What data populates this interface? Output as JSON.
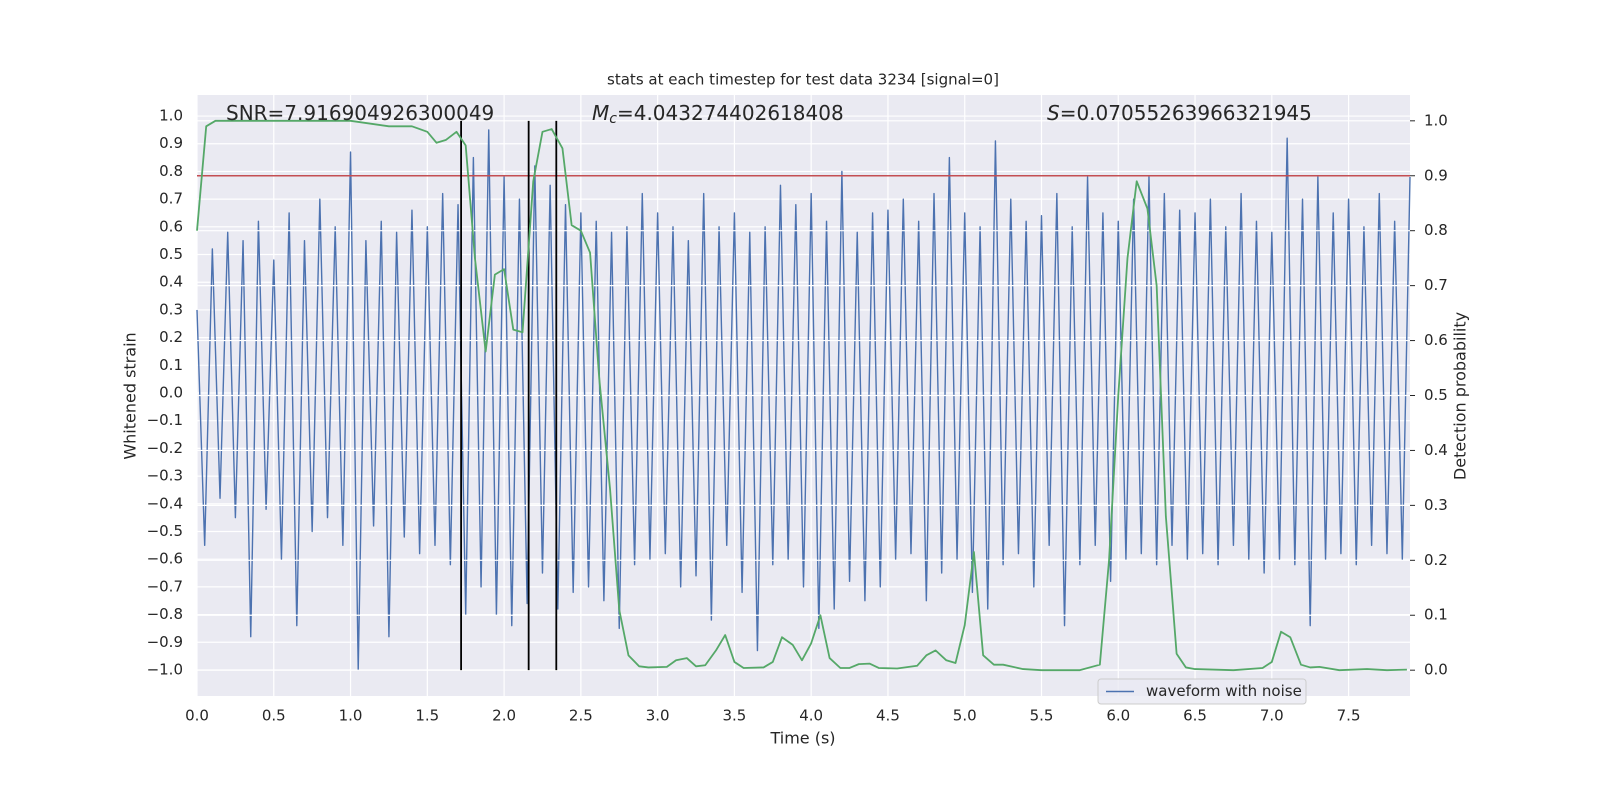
{
  "chart_data": {
    "type": "line",
    "title": "stats at each timestep for test data 3234 [signal=0]",
    "xlabel": "Time (s)",
    "ylabel": "Whitened strain",
    "y2label": "Detection probability",
    "xlim": [
      0,
      7.9
    ],
    "ylim": [
      -1.094,
      1.076
    ],
    "y2lim": [
      -0.047,
      1.047
    ],
    "xticks": [
      {
        "value": 0,
        "label": "0.0"
      },
      0.5,
      {
        "value": 1,
        "label": "1.0"
      },
      1.5,
      {
        "value": 2,
        "label": "2.0"
      },
      2.5,
      {
        "value": 3,
        "label": "3.0"
      },
      3.5,
      {
        "value": 4,
        "label": "4.0"
      },
      4.5,
      {
        "value": 5,
        "label": "5.0"
      },
      5.5,
      {
        "value": 6,
        "label": "6.0"
      },
      6.5,
      {
        "value": 7,
        "label": "7.0"
      },
      7.5
    ],
    "yticks": [
      {
        "value": -1,
        "label": "−1.0"
      },
      {
        "value": -0.9,
        "label": "−0.9"
      },
      {
        "value": -0.8,
        "label": "−0.8"
      },
      {
        "value": -0.7,
        "label": "−0.7"
      },
      {
        "value": -0.6,
        "label": "−0.6"
      },
      {
        "value": -0.5,
        "label": "−0.5"
      },
      {
        "value": -0.4,
        "label": "−0.4"
      },
      {
        "value": -0.3,
        "label": "−0.3"
      },
      {
        "value": -0.2,
        "label": "−0.2"
      },
      {
        "value": -0.1,
        "label": "−0.1"
      },
      {
        "value": 0,
        "label": "0.0"
      },
      0.1,
      0.2,
      0.3,
      0.4,
      0.5,
      0.6,
      0.7,
      0.8,
      0.9,
      {
        "value": 1,
        "label": "1.0"
      }
    ],
    "y2ticks": [
      {
        "value": 0,
        "label": "0.0"
      },
      0.1,
      0.2,
      0.3,
      0.4,
      0.5,
      0.6,
      0.7,
      0.8,
      0.9,
      {
        "value": 1,
        "label": "1.0"
      }
    ],
    "grid": true,
    "legend": "lower right",
    "annotations": [
      {
        "text": "SNR=7.916904926300049"
      },
      {
        "symbol": "M",
        "sub": "c",
        "text": "=4.043274402618408"
      },
      {
        "symbol": "S",
        "text": "=0.07055263966321945"
      }
    ],
    "series": [
      {
        "name": "waveform with noise",
        "color": "#4c72b0",
        "x": [
          0,
          0.05,
          0.1,
          0.15,
          0.2,
          0.25,
          0.3,
          0.35,
          0.4,
          0.45,
          0.5,
          0.55,
          0.6,
          0.65,
          0.7,
          0.75,
          0.8,
          0.85,
          0.9,
          0.95,
          1,
          1.05,
          1.1,
          1.15,
          1.2,
          1.25,
          1.3,
          1.35,
          1.4,
          1.45,
          1.5,
          1.55,
          1.6,
          1.65,
          1.7,
          1.75,
          1.8,
          1.85,
          1.9,
          1.95,
          2,
          2.05,
          2.1,
          2.15,
          2.2,
          2.25,
          2.3,
          2.35,
          2.4,
          2.45,
          2.5,
          2.55,
          2.6,
          2.65,
          2.7,
          2.75,
          2.8,
          2.85,
          2.9,
          2.95,
          3,
          3.05,
          3.1,
          3.15,
          3.2,
          3.25,
          3.3,
          3.35,
          3.4,
          3.45,
          3.5,
          3.55,
          3.6,
          3.65,
          3.7,
          3.75,
          3.8,
          3.85,
          3.9,
          3.95,
          4,
          4.05,
          4.1,
          4.15,
          4.2,
          4.25,
          4.3,
          4.35,
          4.4,
          4.45,
          4.5,
          4.55,
          4.6,
          4.65,
          4.7,
          4.75,
          4.8,
          4.85,
          4.9,
          4.95,
          5,
          5.05,
          5.1,
          5.15,
          5.2,
          5.25,
          5.3,
          5.35,
          5.4,
          5.45,
          5.5,
          5.55,
          5.6,
          5.65,
          5.7,
          5.75,
          5.8,
          5.85,
          5.9,
          5.95,
          6,
          6.05,
          6.1,
          6.15,
          6.2,
          6.25,
          6.3,
          6.35,
          6.4,
          6.45,
          6.5,
          6.55,
          6.6,
          6.65,
          6.7,
          6.75,
          6.8,
          6.85,
          6.9,
          6.95,
          7,
          7.05,
          7.1,
          7.15,
          7.2,
          7.25,
          7.3,
          7.35,
          7.4,
          7.45,
          7.5,
          7.55,
          7.6,
          7.65,
          7.7,
          7.75,
          7.8,
          7.85,
          7.9
        ],
        "values": [
          0.3,
          -0.55,
          0.52,
          -0.38,
          0.58,
          -0.45,
          0.55,
          -0.88,
          0.62,
          -0.42,
          0.48,
          -0.6,
          0.65,
          -0.84,
          0.55,
          -0.5,
          0.7,
          -0.45,
          0.6,
          -0.55,
          0.87,
          -1.0,
          0.55,
          -0.48,
          0.62,
          -0.88,
          0.58,
          -0.52,
          0.66,
          -0.58,
          0.6,
          -0.55,
          0.72,
          -0.62,
          0.68,
          -0.8,
          0.85,
          -0.7,
          0.95,
          -0.8,
          0.78,
          -0.84,
          0.7,
          -0.76,
          0.82,
          -0.65,
          0.75,
          -0.78,
          0.68,
          -0.72,
          0.65,
          -0.7,
          0.62,
          -0.75,
          0.58,
          -0.85,
          0.6,
          -0.62,
          0.72,
          -0.6,
          0.65,
          -0.58,
          0.6,
          -0.7,
          0.55,
          -0.66,
          0.72,
          -0.82,
          0.6,
          -0.55,
          0.65,
          -0.72,
          0.58,
          -0.93,
          0.6,
          -0.62,
          0.75,
          -0.6,
          0.68,
          -0.7,
          0.72,
          -0.85,
          0.62,
          -0.78,
          0.8,
          -0.68,
          0.58,
          -0.75,
          0.65,
          -0.7,
          0.66,
          -0.6,
          0.7,
          -0.58,
          0.62,
          -0.75,
          0.72,
          -0.65,
          0.85,
          -0.6,
          0.65,
          -0.72,
          0.6,
          -0.78,
          0.91,
          -0.62,
          0.7,
          -0.58,
          0.62,
          -0.7,
          0.64,
          -0.55,
          0.72,
          -0.84,
          0.6,
          -0.62,
          0.78,
          -0.55,
          0.65,
          -0.68,
          0.62,
          -0.6,
          0.7,
          -0.58,
          0.78,
          -0.62,
          0.72,
          -0.55,
          0.66,
          -0.6,
          0.65,
          -0.58,
          0.7,
          -0.62,
          0.6,
          -0.55,
          0.72,
          -0.6,
          0.62,
          -0.65,
          0.58,
          -0.6,
          0.92,
          -0.62,
          0.7,
          -0.84,
          0.78,
          -0.6,
          0.65,
          -0.58,
          0.7,
          -0.62,
          0.6,
          -0.55,
          0.72,
          -0.58,
          0.62,
          -0.6,
          0.78
        ]
      },
      {
        "color": "#55a868",
        "axis": "y2",
        "x": [
          0,
          0.06,
          0.12,
          0.5,
          1,
          1.25,
          1.4,
          1.5,
          1.56,
          1.62,
          1.69,
          1.75,
          1.81,
          1.88,
          1.94,
          2,
          2.06,
          2.12,
          2.19,
          2.25,
          2.31,
          2.38,
          2.44,
          2.5,
          2.56,
          2.62,
          2.69,
          2.75,
          2.81,
          2.88,
          2.94,
          3.06,
          3.12,
          3.19,
          3.25,
          3.31,
          3.38,
          3.44,
          3.5,
          3.56,
          3.69,
          3.75,
          3.81,
          3.88,
          3.94,
          4,
          4.06,
          4.12,
          4.19,
          4.25,
          4.31,
          4.38,
          4.44,
          4.56,
          4.69,
          4.75,
          4.81,
          4.88,
          4.94,
          5,
          5.06,
          5.12,
          5.19,
          5.25,
          5.38,
          5.5,
          5.75,
          5.88,
          5.94,
          6,
          6.06,
          6.12,
          6.19,
          6.25,
          6.31,
          6.38,
          6.44,
          6.5,
          6.75,
          6.94,
          7,
          7.06,
          7.12,
          7.19,
          7.25,
          7.31,
          7.44,
          7.62,
          7.75,
          7.88
        ],
        "values": [
          0.8,
          0.99,
          1.0,
          1.0,
          1.0,
          0.99,
          0.99,
          0.98,
          0.96,
          0.965,
          0.98,
          0.955,
          0.75,
          0.58,
          0.72,
          0.73,
          0.62,
          0.615,
          0.89,
          0.98,
          0.985,
          0.95,
          0.81,
          0.8,
          0.76,
          0.53,
          0.33,
          0.11,
          0.027,
          0.007,
          0.005,
          0.006,
          0.018,
          0.022,
          0.007,
          0.009,
          0.036,
          0.064,
          0.015,
          0.004,
          0.005,
          0.015,
          0.06,
          0.046,
          0.018,
          0.049,
          0.1,
          0.022,
          0.004,
          0.004,
          0.011,
          0.012,
          0.004,
          0.003,
          0.008,
          0.027,
          0.036,
          0.018,
          0.013,
          0.082,
          0.215,
          0.027,
          0.01,
          0.01,
          0.002,
          0.0,
          0.0,
          0.01,
          0.2,
          0.5,
          0.75,
          0.89,
          0.84,
          0.7,
          0.28,
          0.03,
          0.005,
          0.002,
          0.0,
          0.004,
          0.015,
          0.07,
          0.06,
          0.01,
          0.005,
          0.006,
          0.0,
          0.002,
          0.0,
          0.001
        ]
      }
    ],
    "hlines": [
      {
        "value": 0.9,
        "axis": "y2",
        "color": "#c44e52"
      }
    ],
    "vlines": [
      {
        "x": [
          1.72,
          2.16,
          2.34
        ],
        "ymin": 0,
        "ymax": 1,
        "axis": "y2",
        "color": "#000000"
      }
    ]
  }
}
